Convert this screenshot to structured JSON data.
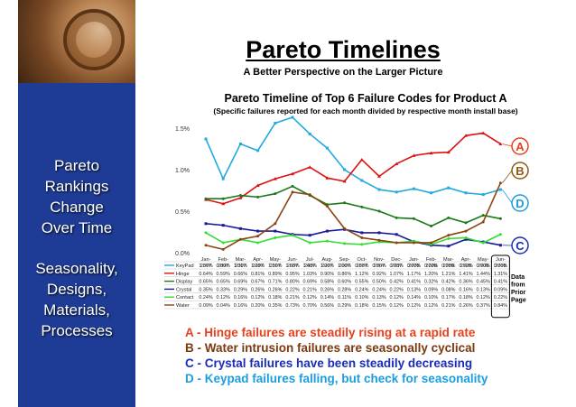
{
  "sidebar": {
    "text1": [
      "Pareto",
      "Rankings",
      "Change",
      "Over Time"
    ],
    "text2": [
      "Seasonality,",
      "Designs,",
      "Materials,",
      "Processes"
    ]
  },
  "header": {
    "title": "Pareto Timelines",
    "subtitle": "A Better Perspective on the Larger Picture"
  },
  "chart_title": "Pareto Timeline of Top 6 Failure Codes for Product A",
  "chart_subtitle": "(Specific failures reported for each month divided by respective month install base)",
  "note": [
    "Data",
    "from",
    "Prior",
    "Page"
  ],
  "conclusions": [
    {
      "text": "A - Hinge failures are steadily rising at a rapid rate",
      "color": "#e8401c"
    },
    {
      "text": "B - Water intrusion failures are seasonally cyclical",
      "color": "#7a3a10"
    },
    {
      "text": "C - Crystal failures have been steadily decreasing",
      "color": "#1a2db8"
    },
    {
      "text": "D - Keypad failures falling, but check for seasonality",
      "color": "#1a9ee0"
    }
  ],
  "chart_data": {
    "type": "line",
    "categories": [
      "Jan-2007",
      "Feb-2007",
      "Mar-2007",
      "Apr-2007",
      "May-2007",
      "Jun-2007",
      "Jul-2007",
      "Aug-2007",
      "Sep-2007",
      "Oct-2007",
      "Nov-2007",
      "Dec-2007",
      "Jan-2008",
      "Feb-2008",
      "Mar-2008",
      "Apr-2008",
      "May-2008",
      "Jun-2008"
    ],
    "category_labels": [
      [
        "Jan-",
        "2007"
      ],
      [
        "Feb-",
        "2007"
      ],
      [
        "Mar-",
        "2007"
      ],
      [
        "Apr-",
        "2007"
      ],
      [
        "May-",
        "2007"
      ],
      [
        "Jun-",
        "2007"
      ],
      [
        "Jul-",
        "2007"
      ],
      [
        "Aug-",
        "2007"
      ],
      [
        "Sep-",
        "2007"
      ],
      [
        "Oct-",
        "2007"
      ],
      [
        "Nov-",
        "2007"
      ],
      [
        "Dec-",
        "2007"
      ],
      [
        "Jan-",
        "2008"
      ],
      [
        "Feb-",
        "2008"
      ],
      [
        "Mar-",
        "2008"
      ],
      [
        "Apr-",
        "2008"
      ],
      [
        "May-",
        "2008"
      ],
      [
        "Jun-",
        "2008"
      ]
    ],
    "ylim": [
      0,
      1.5
    ],
    "yticks": [
      "0.0%",
      "0.5%",
      "1.0%",
      "1.5%"
    ],
    "series": [
      {
        "name": "KeyPad",
        "color": "#22aadd",
        "marker": "square",
        "values": [
          1.37,
          0.89,
          1.31,
          1.23,
          1.56,
          1.63,
          1.43,
          1.26,
          1.0,
          0.87,
          0.76,
          0.73,
          0.77,
          0.72,
          0.78,
          0.72,
          0.7,
          0.76
        ],
        "labels": [
          "1.37%",
          "0.89%",
          "1.31%",
          "1.23%",
          "1.56%",
          "1.63%",
          "1.43%",
          "1.26%",
          "1.00%",
          "0.87%",
          "0.76%",
          "0.73%",
          "0.77%",
          "0.72%",
          "0.78%",
          "0.72%",
          "0.70%",
          "0.76%"
        ]
      },
      {
        "name": "Hinge",
        "color": "#dd1111",
        "marker": "triangle",
        "values": [
          0.64,
          0.59,
          0.66,
          0.81,
          0.89,
          0.95,
          1.03,
          0.9,
          0.86,
          1.12,
          0.92,
          1.07,
          1.17,
          1.2,
          1.21,
          1.41,
          1.44,
          1.31
        ],
        "labels": [
          "0.64%",
          "0.59%",
          "0.66%",
          "0.81%",
          "0.89%",
          "0.95%",
          "1.03%",
          "0.90%",
          "0.86%",
          "1.12%",
          "0.92%",
          "1.07%",
          "1.17%",
          "1.20%",
          "1.21%",
          "1.41%",
          "1.44%",
          "1.31%"
        ]
      },
      {
        "name": "Display",
        "color": "#1a7a1a",
        "marker": "circle",
        "values": [
          0.65,
          0.65,
          0.69,
          0.67,
          0.71,
          0.8,
          0.69,
          0.58,
          0.6,
          0.55,
          0.5,
          0.42,
          0.41,
          0.32,
          0.42,
          0.36,
          0.45,
          0.41
        ],
        "labels": [
          "0.65%",
          "0.65%",
          "0.69%",
          "0.67%",
          "0.71%",
          "0.80%",
          "0.69%",
          "0.58%",
          "0.60%",
          "0.55%",
          "0.50%",
          "0.42%",
          "0.41%",
          "0.32%",
          "0.42%",
          "0.36%",
          "0.45%",
          "0.41%"
        ]
      },
      {
        "name": "Crystal",
        "color": "#1a1a99",
        "marker": "square",
        "values": [
          0.35,
          0.33,
          0.29,
          0.26,
          0.26,
          0.22,
          0.21,
          0.26,
          0.28,
          0.24,
          0.24,
          0.22,
          0.13,
          0.09,
          0.08,
          0.16,
          0.13,
          0.09
        ],
        "labels": [
          "0.35%",
          "0.33%",
          "0.29%",
          "0.26%",
          "0.26%",
          "0.22%",
          "0.21%",
          "0.26%",
          "0.28%",
          "0.24%",
          "0.24%",
          "0.22%",
          "0.13%",
          "0.09%",
          "0.08%",
          "0.16%",
          "0.13%",
          "0.09%"
        ]
      },
      {
        "name": "Contact",
        "color": "#33dd33",
        "marker": "circle",
        "values": [
          0.24,
          0.12,
          0.16,
          0.12,
          0.18,
          0.21,
          0.12,
          0.14,
          0.11,
          0.1,
          0.13,
          0.12,
          0.14,
          0.1,
          0.17,
          0.18,
          0.12,
          0.22
        ],
        "labels": [
          "0.24%",
          "0.12%",
          "0.16%",
          "0.12%",
          "0.18%",
          "0.21%",
          "0.12%",
          "0.14%",
          "0.11%",
          "0.10%",
          "0.13%",
          "0.12%",
          "0.14%",
          "0.10%",
          "0.17%",
          "0.18%",
          "0.12%",
          "0.22%"
        ]
      },
      {
        "name": "Water",
        "color": "#8b4513",
        "marker": "circle",
        "values": [
          0.09,
          0.04,
          0.16,
          0.2,
          0.35,
          0.73,
          0.7,
          0.56,
          0.29,
          0.18,
          0.15,
          0.12,
          0.12,
          0.12,
          0.21,
          0.26,
          0.37,
          0.84
        ],
        "labels": [
          "0.09%",
          "0.04%",
          "0.16%",
          "0.20%",
          "0.35%",
          "0.73%",
          "0.70%",
          "0.56%",
          "0.29%",
          "0.18%",
          "0.15%",
          "0.12%",
          "0.12%",
          "0.12%",
          "0.21%",
          "0.26%",
          "0.37%",
          "0.84%"
        ]
      }
    ],
    "callouts": [
      {
        "letter": "A",
        "series": "Hinge",
        "color": "#e8401c"
      },
      {
        "letter": "B",
        "series": "Water",
        "color": "#8b5a10"
      },
      {
        "letter": "C",
        "series": "Crystal",
        "color": "#1a2db8"
      },
      {
        "letter": "D",
        "series": "KeyPad",
        "color": "#1a9ee0"
      }
    ]
  }
}
